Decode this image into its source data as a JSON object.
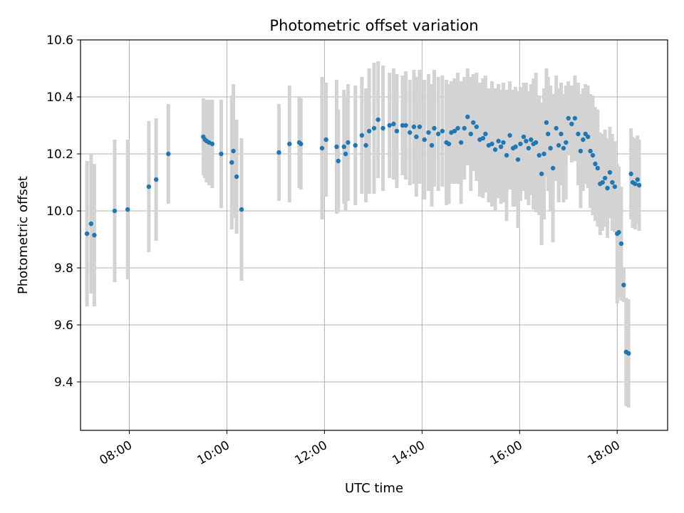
{
  "chart_data": {
    "type": "scatter",
    "title": "Photometric offset variation",
    "xlabel": "UTC time",
    "ylabel": "Photometric offset",
    "xlim": [
      "07:00",
      "19:02"
    ],
    "ylim": [
      9.23,
      10.6
    ],
    "x_ticks": [
      "08:00",
      "10:00",
      "12:00",
      "14:00",
      "16:00",
      "18:00"
    ],
    "y_ticks": [
      "9.4",
      "9.6",
      "9.8",
      "10.0",
      "10.2",
      "10.4",
      "10.6"
    ],
    "grid": true,
    "colors": {
      "points": "#1f77b4",
      "error_bars": "#d3d3d3",
      "grid": "#b0b0b0"
    },
    "series": [
      {
        "x": [
          "07:08",
          "07:13",
          "07:17",
          "07:42",
          "07:58",
          "08:24",
          "08:33",
          "08:48",
          "09:31",
          "09:33",
          "09:35",
          "09:38",
          "09:42",
          "09:53",
          "10:06",
          "10:08",
          "10:12",
          "10:18",
          "11:04",
          "11:17",
          "11:29",
          "11:31",
          "11:57",
          "12:02",
          "12:15",
          "12:17",
          "12:24",
          "12:26",
          "12:29",
          "12:38",
          "12:46",
          "12:51",
          "12:55",
          "13:01",
          "13:06",
          "13:12",
          "13:20",
          "13:25",
          "13:29",
          "13:36",
          "13:40",
          "13:45",
          "13:50",
          "13:53",
          "13:57",
          "14:03",
          "14:08",
          "14:12",
          "14:15",
          "14:20",
          "14:25",
          "14:30",
          "14:33",
          "14:36",
          "14:40",
          "14:44",
          "14:48",
          "14:52",
          "14:56",
          "15:00",
          "15:03",
          "15:07",
          "15:11",
          "15:15",
          "15:18",
          "15:22",
          "15:26",
          "15:30",
          "15:34",
          "15:37",
          "15:40",
          "15:44",
          "15:48",
          "15:52",
          "15:55",
          "15:58",
          "16:01",
          "16:05",
          "16:08",
          "16:11",
          "16:14",
          "16:17",
          "16:20",
          "16:24",
          "16:27",
          "16:30",
          "16:33",
          "16:35",
          "16:38",
          "16:41",
          "16:45",
          "16:48",
          "16:51",
          "16:54",
          "16:57",
          "17:00",
          "17:04",
          "17:08",
          "17:12",
          "17:15",
          "17:18",
          "17:21",
          "17:24",
          "17:27",
          "17:30",
          "17:33",
          "17:36",
          "17:39",
          "17:42",
          "17:45",
          "17:48",
          "17:51",
          "17:54",
          "17:57",
          "18:00",
          "18:02",
          "18:05",
          "18:08",
          "18:11",
          "18:14",
          "18:17",
          "18:19",
          "18:22",
          "18:25",
          "18:27"
        ],
        "y": [
          9.92,
          9.955,
          9.915,
          10.0,
          10.005,
          10.085,
          10.11,
          10.2,
          10.26,
          10.25,
          10.245,
          10.24,
          10.235,
          10.2,
          10.17,
          10.21,
          10.12,
          10.005,
          10.205,
          10.235,
          10.24,
          10.235,
          10.22,
          10.25,
          10.225,
          10.175,
          10.225,
          10.2,
          10.24,
          10.23,
          10.265,
          10.23,
          10.28,
          10.29,
          10.32,
          10.29,
          10.3,
          10.305,
          10.28,
          10.3,
          10.3,
          10.275,
          10.295,
          10.26,
          10.295,
          10.25,
          10.275,
          10.23,
          10.29,
          10.27,
          10.28,
          10.24,
          10.235,
          10.275,
          10.28,
          10.29,
          10.24,
          10.29,
          10.33,
          10.27,
          10.31,
          10.295,
          10.25,
          10.255,
          10.27,
          10.23,
          10.235,
          10.215,
          10.245,
          10.225,
          10.24,
          10.195,
          10.265,
          10.22,
          10.225,
          10.18,
          10.235,
          10.26,
          10.245,
          10.22,
          10.25,
          10.235,
          10.24,
          10.195,
          10.13,
          10.2,
          10.31,
          10.27,
          10.22,
          10.15,
          10.29,
          10.23,
          10.27,
          10.22,
          10.24,
          10.325,
          10.305,
          10.325,
          10.27,
          10.21,
          10.25,
          10.27,
          10.26,
          10.21,
          10.195,
          10.165,
          10.15,
          10.095,
          10.1,
          10.115,
          10.08,
          10.135,
          10.1,
          10.085,
          9.92,
          9.925,
          9.885,
          9.74,
          9.505,
          9.5,
          10.13,
          10.1,
          10.095,
          10.11,
          10.09
        ],
        "err": [
          0.255,
          0.245,
          0.25,
          0.25,
          0.245,
          0.23,
          0.215,
          0.175,
          0.135,
          0.135,
          0.145,
          0.15,
          0.155,
          0.19,
          0.235,
          0.235,
          0.2,
          0.25,
          0.17,
          0.205,
          0.16,
          0.16,
          0.25,
          0.2,
          0.235,
          0.18,
          0.2,
          0.2,
          0.205,
          0.21,
          0.205,
          0.2,
          0.22,
          0.23,
          0.205,
          0.22,
          0.185,
          0.195,
          0.2,
          0.175,
          0.19,
          0.185,
          0.2,
          0.21,
          0.2,
          0.21,
          0.205,
          0.215,
          0.205,
          0.2,
          0.195,
          0.22,
          0.21,
          0.18,
          0.185,
          0.195,
          0.215,
          0.18,
          0.17,
          0.2,
          0.17,
          0.19,
          0.2,
          0.21,
          0.205,
          0.2,
          0.22,
          0.215,
          0.2,
          0.2,
          0.21,
          0.23,
          0.19,
          0.205,
          0.21,
          0.24,
          0.2,
          0.19,
          0.205,
          0.2,
          0.195,
          0.23,
          0.245,
          0.21,
          0.25,
          0.23,
          0.19,
          0.2,
          0.22,
          0.26,
          0.185,
          0.2,
          0.18,
          0.19,
          0.2,
          0.13,
          0.135,
          0.15,
          0.18,
          0.2,
          0.18,
          0.175,
          0.18,
          0.2,
          0.21,
          0.2,
          0.205,
          0.18,
          0.17,
          0.17,
          0.175,
          0.16,
          0.17,
          0.16,
          0.245,
          0.23,
          0.2,
          0.06,
          0.19,
          0.19,
          0.16,
          0.16,
          0.16,
          0.155,
          0.16
        ]
      }
    ]
  }
}
